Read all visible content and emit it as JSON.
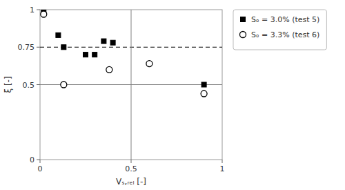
{
  "chart_data": {
    "type": "scatter",
    "xlabel": "Vₛ,ᵣₑₗ [-]",
    "ylabel": "ξ [-]",
    "series": [
      {
        "name": "Sₒ = 3.0% (test 5)",
        "color": "black",
        "marker": "square",
        "x": [
          0.02,
          0.1,
          0.13,
          0.25,
          0.3,
          0.35,
          0.4,
          0.9
        ],
        "values": [
          1.0,
          0.83,
          0.75,
          0.7,
          0.7,
          0.79,
          0.78,
          0.5
        ]
      },
      {
        "name": "Sₒ = 3.3% (test 6)",
        "color": "black",
        "marker": "open-circle",
        "x": [
          0.02,
          0.13,
          0.38,
          0.6,
          0.9
        ],
        "values": [
          0.97,
          0.5,
          0.6,
          0.64,
          0.44
        ]
      }
    ],
    "reference_lines": [
      {
        "orientation": "horizontal",
        "value": 0.75,
        "color": "black",
        "line_style": "dashed"
      },
      {
        "orientation": "horizontal",
        "value": 0.5,
        "color": "gray",
        "line_style": "solid"
      },
      {
        "orientation": "vertical",
        "value": 0.5,
        "color": "gray",
        "line_style": "solid"
      }
    ],
    "xlim": [
      0,
      1
    ],
    "ylim": [
      0,
      1
    ],
    "xticks": [
      0,
      0.5,
      1
    ],
    "yticks": [
      0,
      0.5,
      0.75,
      1
    ],
    "grid": false,
    "legend": "right"
  }
}
